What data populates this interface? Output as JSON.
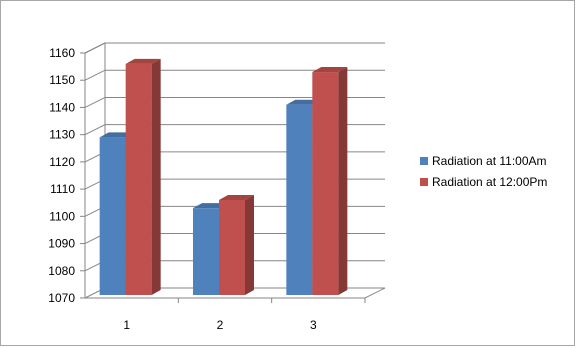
{
  "chart_data": {
    "type": "bar",
    "title": "",
    "xlabel": "",
    "ylabel": "",
    "categories": [
      "1",
      "2",
      "3"
    ],
    "series": [
      {
        "name": "Radiation at 11:00Am",
        "values": [
          1129,
          1103,
          1141
        ],
        "color": "#4f81bd"
      },
      {
        "name": "Radiation at 12:00Pm",
        "values": [
          1156,
          1106,
          1153
        ],
        "color": "#c0504d"
      }
    ],
    "ylim": [
      1070,
      1160
    ],
    "yticks": [
      "1070",
      "1080",
      "1090",
      "1100",
      "1110",
      "1120",
      "1130",
      "1140",
      "1150",
      "1160"
    ],
    "grid": true,
    "legend_position": "right",
    "style": "3d-column"
  }
}
